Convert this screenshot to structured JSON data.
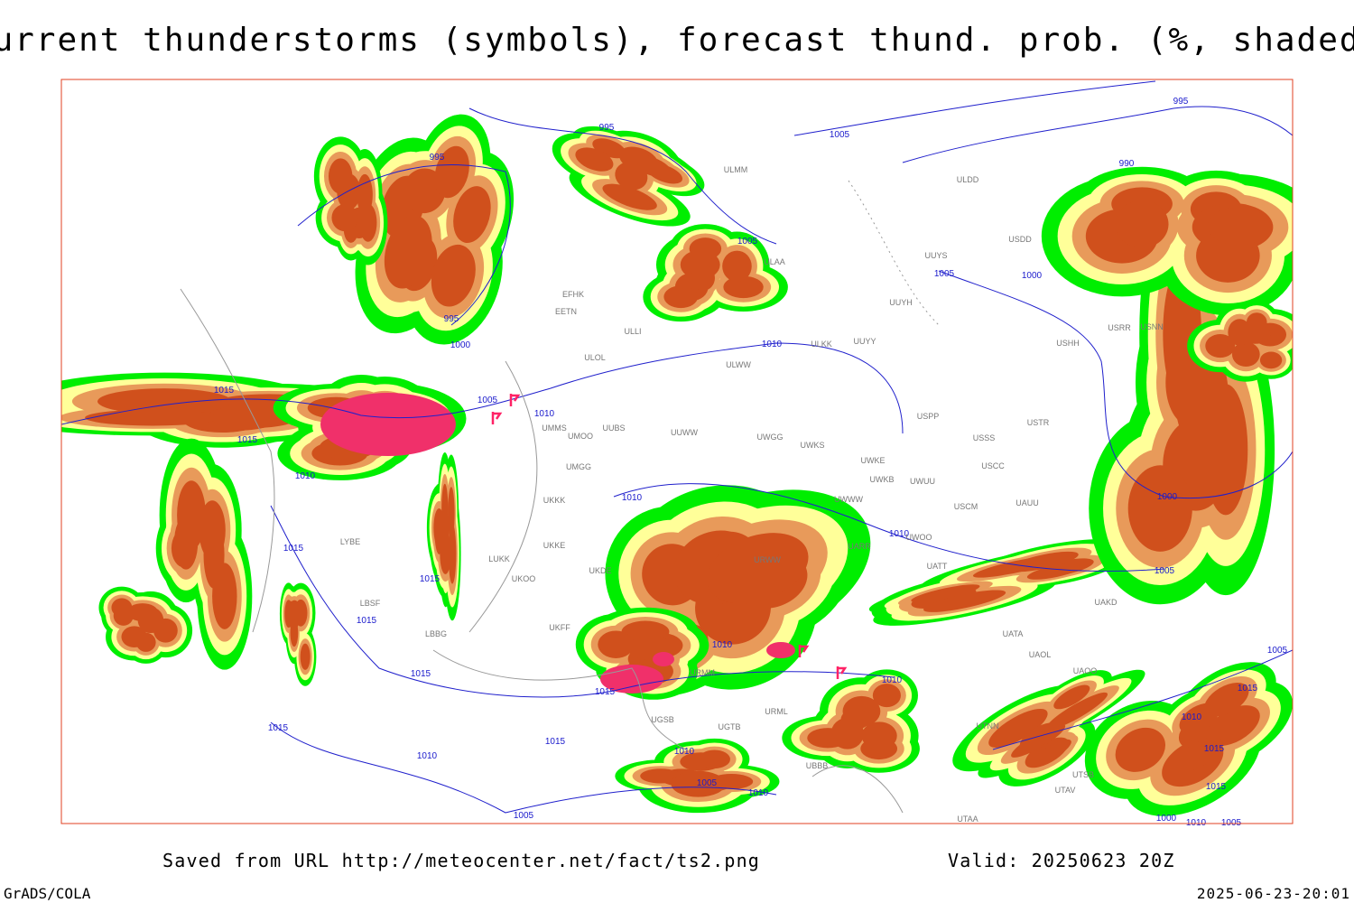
{
  "title": "Current thunderstorms (symbols), forecast thund. prob. (%, shaded)",
  "footer": {
    "source": "Saved from URL http://meteocenter.net/fact/ts2.png",
    "valid": "Valid: 20250623 20Z",
    "software": "GrADS/COLA",
    "timestamp": "2025-06-23-20:01"
  },
  "map": {
    "isobar_labels": [
      "995",
      "995",
      "995",
      "995",
      "990",
      "1005",
      "1005",
      "1005",
      "1000",
      "1000",
      "1010",
      "1015",
      "1005",
      "1010",
      "1015",
      "1010",
      "1010",
      "1015",
      "1015",
      "1015",
      "1010",
      "1010",
      "1005",
      "1000",
      "1015",
      "1015",
      "1010",
      "1015",
      "1015",
      "1010",
      "1005",
      "1010",
      "1010",
      "1005",
      "1005",
      "1015",
      "1010",
      "1015",
      "1015",
      "1000",
      "1010",
      "1005"
    ],
    "stations": [
      "ULMM",
      "ULAA",
      "ULDD",
      "USDD",
      "UUYS",
      "UUYH",
      "UUYY",
      "ULKK",
      "ULWW",
      "EFHK",
      "EETN",
      "ULLI",
      "ULOL",
      "UMMS",
      "UMOO",
      "UUBS",
      "UUWW",
      "UWGG",
      "UWKS",
      "UWKE",
      "USSS",
      "USCC",
      "USTR",
      "USPP",
      "USHH",
      "USRR",
      "USNN",
      "UWUU",
      "UWKB",
      "UMGG",
      "UKKK",
      "USCM",
      "UAUU",
      "UWOO",
      "UATT",
      "UAKD",
      "UATA",
      "UAOL",
      "UAOO",
      "UTNN",
      "UTSB",
      "UTAV",
      "UTAA",
      "UKKE",
      "UKDE",
      "UKOO",
      "LUKK",
      "LYBE",
      "LBSF",
      "LBBG",
      "UKFF",
      "URMM",
      "URML",
      "UGTB",
      "UGSB",
      "UBBB",
      "URWW",
      "UWWW",
      "UARR"
    ]
  }
}
